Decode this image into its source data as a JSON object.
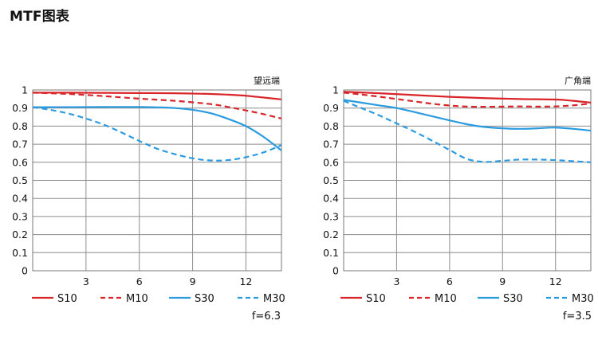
{
  "page": {
    "title": "MTF图表"
  },
  "colors": {
    "S": "#d9252a",
    "M": "#d9252a",
    "S30": "#2b9be0",
    "M30": "#2b9be0",
    "grid": "#8c8c8c"
  },
  "chart_data": [
    {
      "type": "line",
      "title": "望远端",
      "footer": "f=6.3",
      "xlim": [
        0,
        14
      ],
      "ylim": [
        0,
        1
      ],
      "xticks": [
        3,
        6,
        9,
        12
      ],
      "yticks": [
        0,
        0.1,
        0.2,
        0.3,
        0.4,
        0.5,
        0.6,
        0.7,
        0.8,
        0.9,
        1
      ],
      "ytick_labels": [
        "0",
        "0.1",
        "0.2",
        "0.3",
        "0.4",
        "0.5",
        "0.6",
        "0.7",
        "0.8",
        "0.9",
        "1"
      ],
      "series": [
        {
          "name": "S10",
          "color": "#d9252a",
          "dash": false,
          "x": [
            0,
            2,
            4,
            6,
            8,
            10,
            11,
            12,
            13,
            14
          ],
          "y": [
            0.985,
            0.985,
            0.984,
            0.983,
            0.982,
            0.978,
            0.974,
            0.968,
            0.958,
            0.948
          ]
        },
        {
          "name": "M10",
          "color": "#d9252a",
          "dash": true,
          "x": [
            0,
            2,
            4,
            6,
            8,
            10,
            11,
            12,
            13,
            14
          ],
          "y": [
            0.985,
            0.978,
            0.966,
            0.952,
            0.94,
            0.922,
            0.906,
            0.887,
            0.866,
            0.842
          ]
        },
        {
          "name": "S30",
          "color": "#2b9be0",
          "dash": false,
          "x": [
            0,
            2,
            4,
            6,
            7,
            8,
            9,
            10,
            11,
            12,
            13,
            14
          ],
          "y": [
            0.905,
            0.905,
            0.906,
            0.906,
            0.904,
            0.9,
            0.89,
            0.872,
            0.84,
            0.8,
            0.74,
            0.665
          ]
        },
        {
          "name": "M30",
          "color": "#2b9be0",
          "dash": true,
          "x": [
            0,
            1,
            2,
            3,
            4,
            5,
            6,
            7,
            8,
            9,
            10,
            11,
            12,
            13,
            14
          ],
          "y": [
            0.905,
            0.89,
            0.87,
            0.842,
            0.808,
            0.765,
            0.718,
            0.675,
            0.645,
            0.622,
            0.61,
            0.612,
            0.628,
            0.655,
            0.695
          ]
        }
      ]
    },
    {
      "type": "line",
      "title": "广角端",
      "footer": "f=3.5",
      "xlim": [
        0,
        14
      ],
      "ylim": [
        0,
        1
      ],
      "xticks": [
        3,
        6,
        9,
        12
      ],
      "yticks": [
        0,
        0.1,
        0.2,
        0.3,
        0.4,
        0.5,
        0.6,
        0.7,
        0.8,
        0.9,
        1
      ],
      "ytick_labels": [
        "0",
        "0.1",
        "0.2",
        "0.3",
        "0.4",
        "0.5",
        "0.6",
        "0.7",
        "0.8",
        "0.9",
        "1"
      ],
      "series": [
        {
          "name": "S10",
          "color": "#d9252a",
          "dash": false,
          "x": [
            0,
            2,
            4,
            6,
            8,
            10,
            12,
            13,
            14
          ],
          "y": [
            0.99,
            0.982,
            0.972,
            0.962,
            0.955,
            0.95,
            0.947,
            0.94,
            0.93
          ]
        },
        {
          "name": "M10",
          "color": "#d9252a",
          "dash": true,
          "x": [
            0,
            1,
            2,
            3,
            4,
            5,
            6,
            7,
            8,
            9,
            10,
            11,
            12,
            13,
            14
          ],
          "y": [
            0.985,
            0.975,
            0.963,
            0.95,
            0.937,
            0.924,
            0.914,
            0.908,
            0.907,
            0.908,
            0.909,
            0.908,
            0.909,
            0.915,
            0.925
          ]
        },
        {
          "name": "S30",
          "color": "#2b9be0",
          "dash": false,
          "x": [
            0,
            1,
            2,
            3,
            4,
            5,
            6,
            7,
            8,
            9,
            10,
            11,
            12,
            13,
            14
          ],
          "y": [
            0.945,
            0.93,
            0.915,
            0.9,
            0.878,
            0.855,
            0.832,
            0.81,
            0.795,
            0.788,
            0.785,
            0.788,
            0.792,
            0.785,
            0.775
          ]
        },
        {
          "name": "M30",
          "color": "#2b9be0",
          "dash": true,
          "x": [
            0,
            1,
            2,
            3,
            4,
            5,
            6,
            7,
            8,
            9,
            10,
            11,
            12,
            13,
            14
          ],
          "y": [
            0.94,
            0.9,
            0.86,
            0.815,
            0.77,
            0.72,
            0.668,
            0.618,
            0.602,
            0.608,
            0.615,
            0.615,
            0.612,
            0.606,
            0.6
          ]
        }
      ]
    }
  ]
}
